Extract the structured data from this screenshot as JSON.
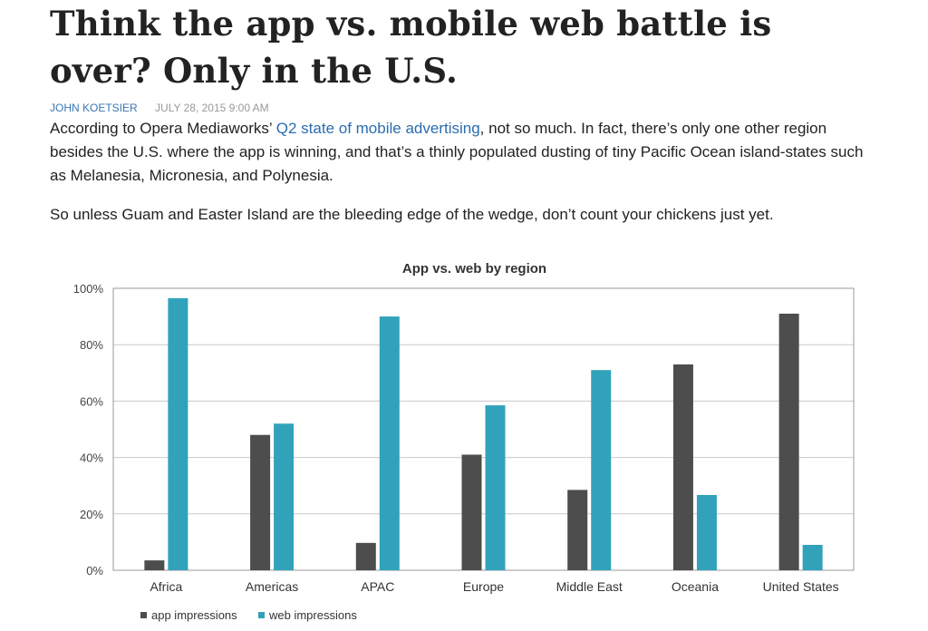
{
  "article": {
    "title": "Think the app vs. mobile web battle is over? Only in the U.S.",
    "author": "JOHN KOETSIER",
    "date": "JULY 28, 2015 9:00 AM",
    "p1_before": "According to Opera Mediaworks’ ",
    "p1_link": "Q2 state of mobile advertising",
    "p1_after": ", not so much. In fact, there’s only one other region besides the U.S. where the app is winning, and that’s a thinly populated dusting of tiny Pacific Ocean island-states such as Melanesia, Micronesia, and Polynesia.",
    "p2": "So unless Guam and Easter Island are the bleeding edge of the wedge, don’t count your chickens just yet."
  },
  "chart_data": {
    "type": "bar",
    "title": "App vs. web by region",
    "categories": [
      "Africa",
      "Americas",
      "APAC",
      "Europe",
      "Middle East",
      "Oceania",
      "United States"
    ],
    "series": [
      {
        "name": "app impressions",
        "color": "#4d4d4d",
        "values": [
          3.5,
          48,
          9.7,
          41,
          28.5,
          73,
          91
        ]
      },
      {
        "name": "web impressions",
        "color": "#32a2bb",
        "values": [
          96.5,
          52,
          90,
          58.5,
          71,
          26.7,
          9
        ]
      }
    ],
    "ylim": [
      0,
      100
    ],
    "yticks": [
      "0%",
      "20%",
      "40%",
      "60%",
      "80%",
      "100%"
    ],
    "grid": true,
    "legend": "bottom-left"
  }
}
